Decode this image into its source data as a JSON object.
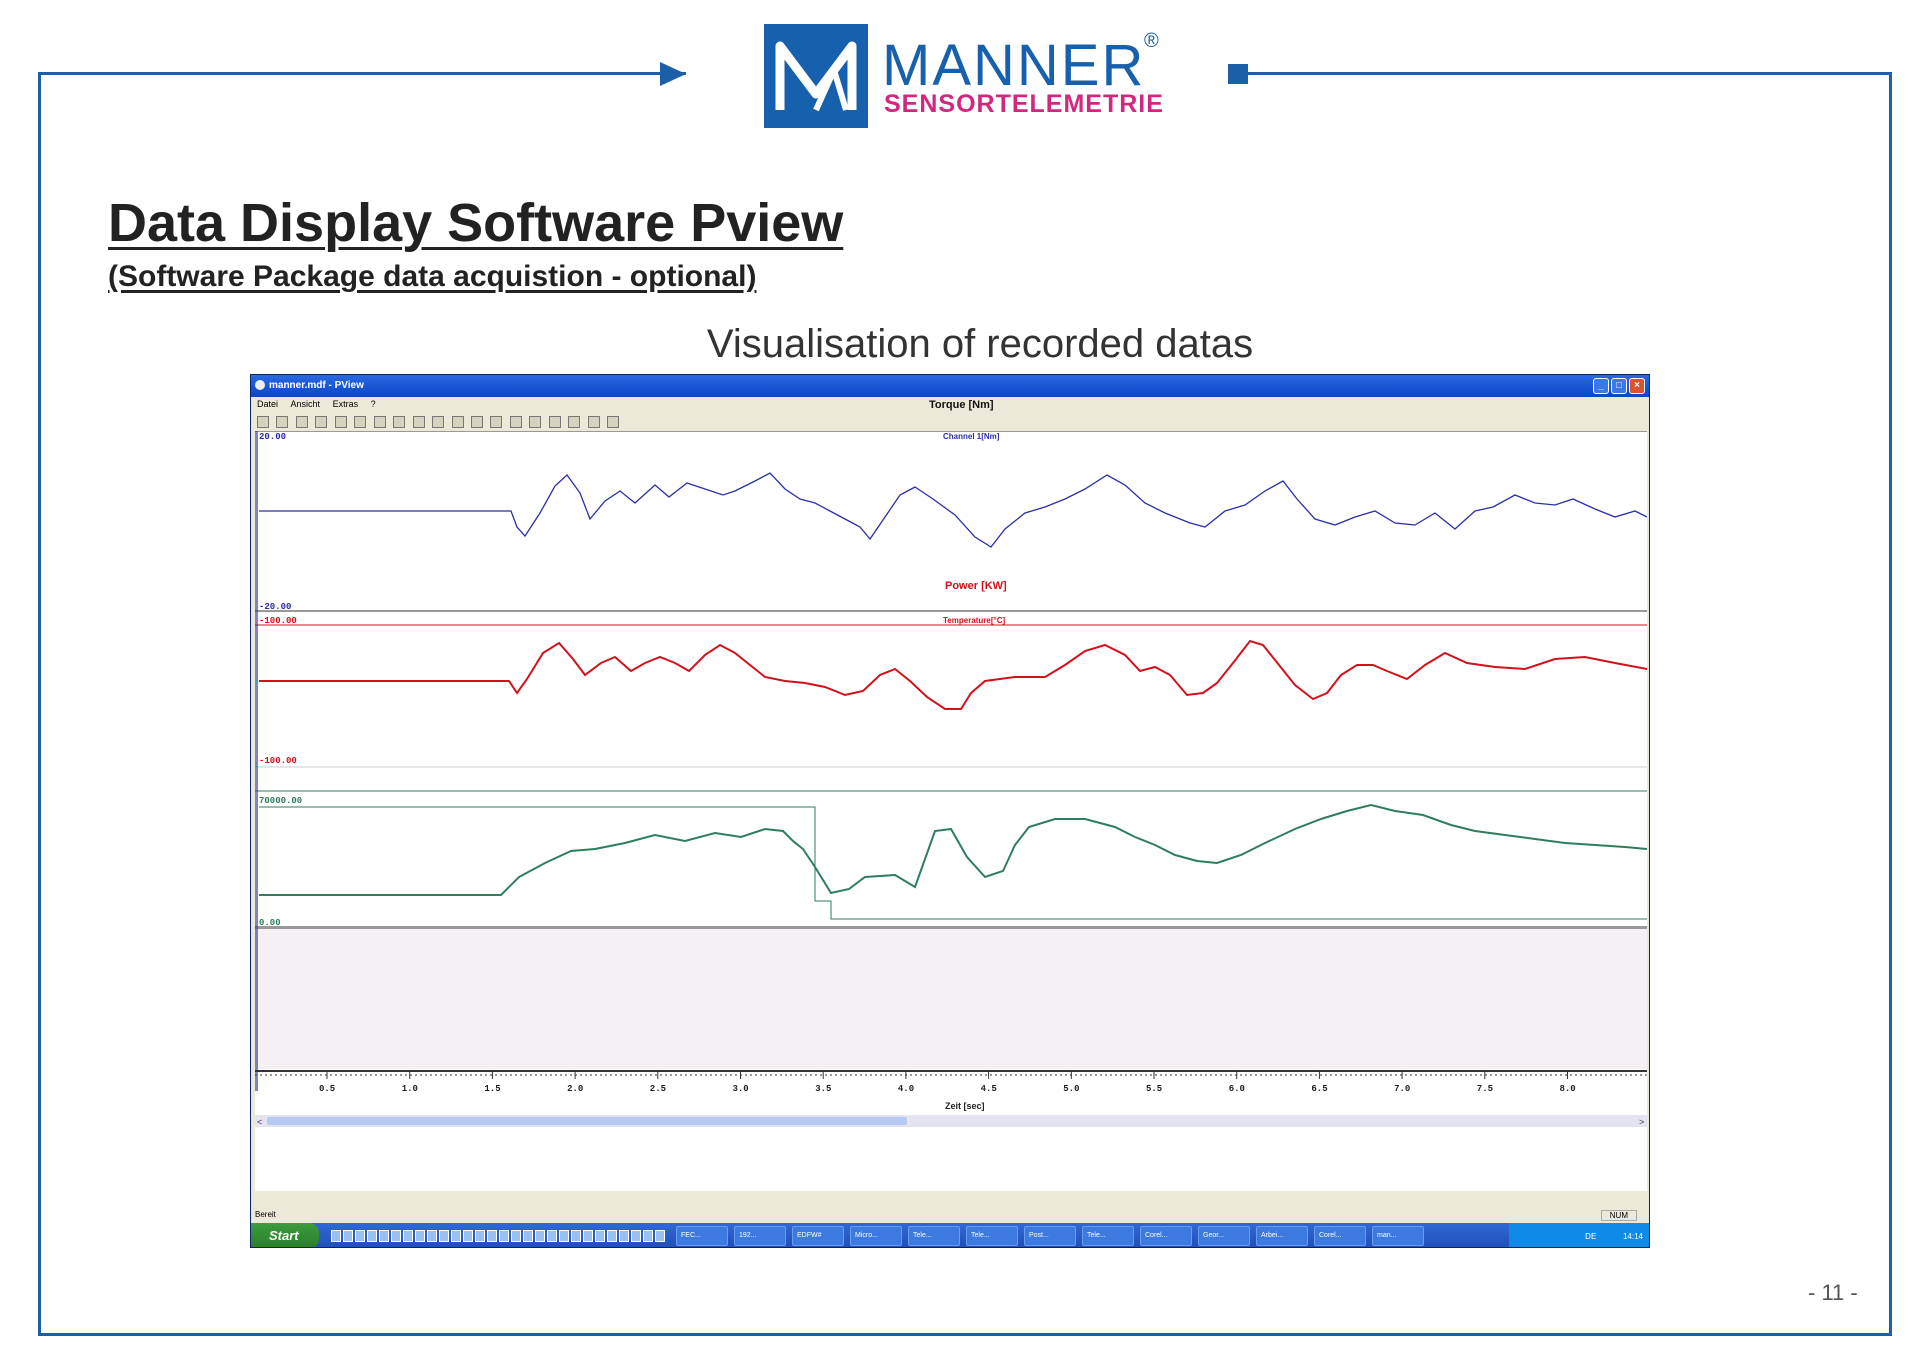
{
  "brand": {
    "name": "MANNER",
    "registered": "®",
    "subtitle": "SENSORTELEMETRIE"
  },
  "page": {
    "title": "Data Display Software Pview",
    "subtitle": "(Software Package data acquistion - optional)",
    "caption": "Visualisation of recorded datas",
    "number": "- 11 -"
  },
  "window": {
    "title": "manner.mdf - PView",
    "menu": [
      "Datei",
      "Ansicht",
      "Extras",
      "?"
    ],
    "top_label": "Torque [Nm]",
    "status": "Bereit",
    "num_indicator": "NUM"
  },
  "colors": {
    "brand_blue": "#1660ad",
    "brand_pink": "#d3277f",
    "channel1": "#2b2fa8",
    "temperature": "#d4101b",
    "power": "#2e7d5c"
  },
  "channels": [
    {
      "header": "Channel 1[Nm]",
      "top": "20.00",
      "bottom": "-20.00",
      "color": "#2b2fa8"
    },
    {
      "header": "Temperature[°C]",
      "top": "-100.00",
      "bottom": "-100.00",
      "color": "#d4101b",
      "overlay_label": "Power [KW]"
    },
    {
      "header": "",
      "top": "70000.00",
      "bottom": "0.00",
      "color": "#2e7d5c"
    }
  ],
  "axis": {
    "ticks": [
      "0.5",
      "1.0",
      "1.5",
      "2.0",
      "2.5",
      "3.0",
      "3.5",
      "4.0",
      "4.5",
      "5.0",
      "5.5",
      "6.0",
      "6.5",
      "7.0",
      "7.5",
      "8.0"
    ],
    "label": "Zeit [sec]"
  },
  "taskbar": {
    "start": "Start",
    "buttons": [
      "FEC...",
      "192...",
      "EDFW#",
      "Micro...",
      "Tele...",
      "Tele...",
      "Post...",
      "Tele...",
      "Corel...",
      "Geor...",
      "Arbei...",
      "Corel...",
      "man..."
    ],
    "lang": "DE",
    "clock": "14:14"
  }
}
